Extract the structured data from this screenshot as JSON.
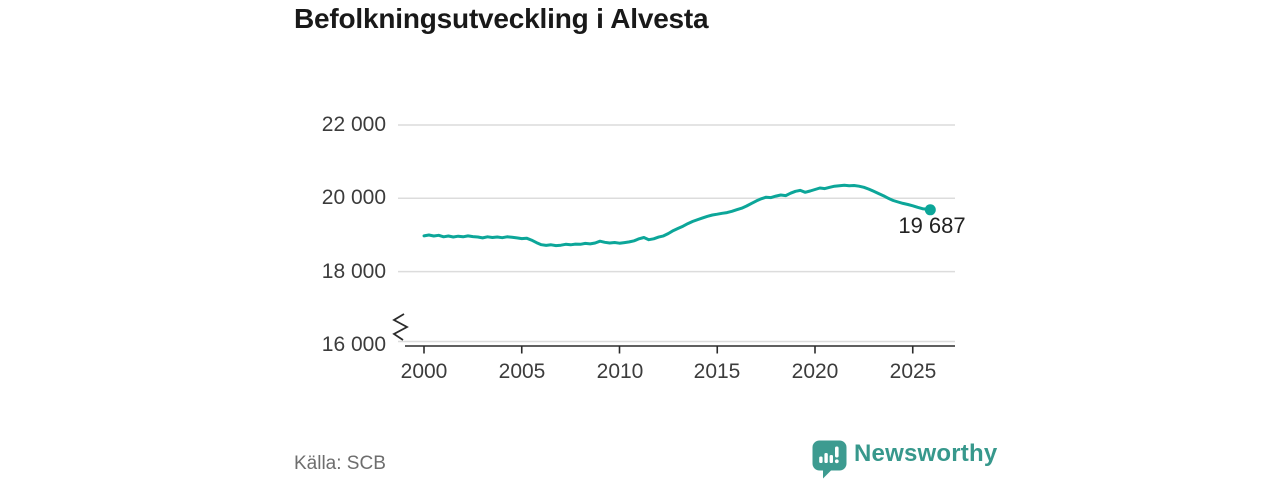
{
  "header": {
    "title": "Befolkningsutveckling i Alvesta"
  },
  "footer": {
    "source": "Källa: SCB",
    "brand": {
      "name": "Newsworthy",
      "icon": "newsworthy-speech-bubble-barchart-icon"
    }
  },
  "colors": {
    "line": "#0ca699",
    "dot": "#0ca699",
    "grid": "#dcdcdc",
    "axis": "#2b2b2b",
    "axis_text": "#3c3c3c",
    "title_text": "#191919",
    "source_text": "#6e6e6e",
    "brand_teal": "#3d9b90"
  },
  "chart_data": {
    "type": "line",
    "title": "Befolkningsutveckling i Alvesta",
    "xlabel": "",
    "ylabel": "",
    "grid": "horizontal",
    "y_axis_break": true,
    "xlim": [
      1998.7,
      2027.2
    ],
    "ylim_shown": [
      16000,
      22000
    ],
    "x_ticks": [
      {
        "value": 2000,
        "label": "2000"
      },
      {
        "value": 2005,
        "label": "2005"
      },
      {
        "value": 2010,
        "label": "2010"
      },
      {
        "value": 2015,
        "label": "2015"
      },
      {
        "value": 2020,
        "label": "2020"
      },
      {
        "value": 2025,
        "label": "2025"
      }
    ],
    "y_ticks": [
      {
        "value": 22000,
        "label": "22 000"
      },
      {
        "value": 20000,
        "label": "20 000"
      },
      {
        "value": 18000,
        "label": "18 000"
      },
      {
        "value": 16000,
        "label": "16 000"
      }
    ],
    "end_label": {
      "value": 19687,
      "label": "19 687"
    },
    "series": [
      {
        "name": "Befolkning",
        "color": "#0ca699",
        "points": [
          [
            2000.0,
            18975
          ],
          [
            2000.25,
            19000
          ],
          [
            2000.5,
            18970
          ],
          [
            2000.75,
            18990
          ],
          [
            2001.0,
            18950
          ],
          [
            2001.25,
            18970
          ],
          [
            2001.5,
            18945
          ],
          [
            2001.75,
            18965
          ],
          [
            2002.0,
            18950
          ],
          [
            2002.25,
            18975
          ],
          [
            2002.5,
            18955
          ],
          [
            2002.75,
            18945
          ],
          [
            2003.0,
            18920
          ],
          [
            2003.25,
            18950
          ],
          [
            2003.5,
            18930
          ],
          [
            2003.75,
            18945
          ],
          [
            2004.0,
            18925
          ],
          [
            2004.25,
            18950
          ],
          [
            2004.5,
            18935
          ],
          [
            2004.75,
            18920
          ],
          [
            2005.0,
            18900
          ],
          [
            2005.25,
            18910
          ],
          [
            2005.5,
            18860
          ],
          [
            2005.75,
            18790
          ],
          [
            2006.0,
            18735
          ],
          [
            2006.25,
            18715
          ],
          [
            2006.5,
            18730
          ],
          [
            2006.75,
            18710
          ],
          [
            2007.0,
            18720
          ],
          [
            2007.25,
            18745
          ],
          [
            2007.5,
            18730
          ],
          [
            2007.75,
            18750
          ],
          [
            2008.0,
            18745
          ],
          [
            2008.25,
            18770
          ],
          [
            2008.5,
            18755
          ],
          [
            2008.75,
            18780
          ],
          [
            2009.0,
            18830
          ],
          [
            2009.25,
            18800
          ],
          [
            2009.5,
            18780
          ],
          [
            2009.75,
            18795
          ],
          [
            2010.0,
            18775
          ],
          [
            2010.25,
            18790
          ],
          [
            2010.5,
            18810
          ],
          [
            2010.75,
            18840
          ],
          [
            2011.0,
            18895
          ],
          [
            2011.25,
            18930
          ],
          [
            2011.5,
            18870
          ],
          [
            2011.75,
            18895
          ],
          [
            2012.0,
            18940
          ],
          [
            2012.25,
            18975
          ],
          [
            2012.5,
            19040
          ],
          [
            2012.75,
            19120
          ],
          [
            2013.0,
            19180
          ],
          [
            2013.25,
            19240
          ],
          [
            2013.5,
            19310
          ],
          [
            2013.75,
            19370
          ],
          [
            2014.0,
            19420
          ],
          [
            2014.25,
            19465
          ],
          [
            2014.5,
            19510
          ],
          [
            2014.75,
            19545
          ],
          [
            2015.0,
            19565
          ],
          [
            2015.25,
            19590
          ],
          [
            2015.5,
            19610
          ],
          [
            2015.75,
            19645
          ],
          [
            2016.0,
            19690
          ],
          [
            2016.25,
            19730
          ],
          [
            2016.5,
            19790
          ],
          [
            2016.75,
            19860
          ],
          [
            2017.0,
            19930
          ],
          [
            2017.25,
            19985
          ],
          [
            2017.5,
            20030
          ],
          [
            2017.75,
            20020
          ],
          [
            2018.0,
            20060
          ],
          [
            2018.25,
            20090
          ],
          [
            2018.5,
            20075
          ],
          [
            2018.75,
            20140
          ],
          [
            2019.0,
            20190
          ],
          [
            2019.25,
            20215
          ],
          [
            2019.5,
            20165
          ],
          [
            2019.75,
            20200
          ],
          [
            2020.0,
            20240
          ],
          [
            2020.25,
            20280
          ],
          [
            2020.5,
            20265
          ],
          [
            2020.75,
            20300
          ],
          [
            2021.0,
            20330
          ],
          [
            2021.25,
            20345
          ],
          [
            2021.5,
            20355
          ],
          [
            2021.75,
            20345
          ],
          [
            2022.0,
            20350
          ],
          [
            2022.25,
            20330
          ],
          [
            2022.5,
            20300
          ],
          [
            2022.75,
            20250
          ],
          [
            2023.0,
            20190
          ],
          [
            2023.25,
            20130
          ],
          [
            2023.5,
            20070
          ],
          [
            2023.75,
            20000
          ],
          [
            2024.0,
            19940
          ],
          [
            2024.25,
            19900
          ],
          [
            2024.5,
            19860
          ],
          [
            2024.75,
            19830
          ],
          [
            2025.0,
            19795
          ],
          [
            2025.25,
            19755
          ],
          [
            2025.5,
            19715
          ],
          [
            2025.75,
            19700
          ],
          [
            2025.9,
            19687
          ]
        ]
      }
    ],
    "source": "Källa: SCB"
  }
}
